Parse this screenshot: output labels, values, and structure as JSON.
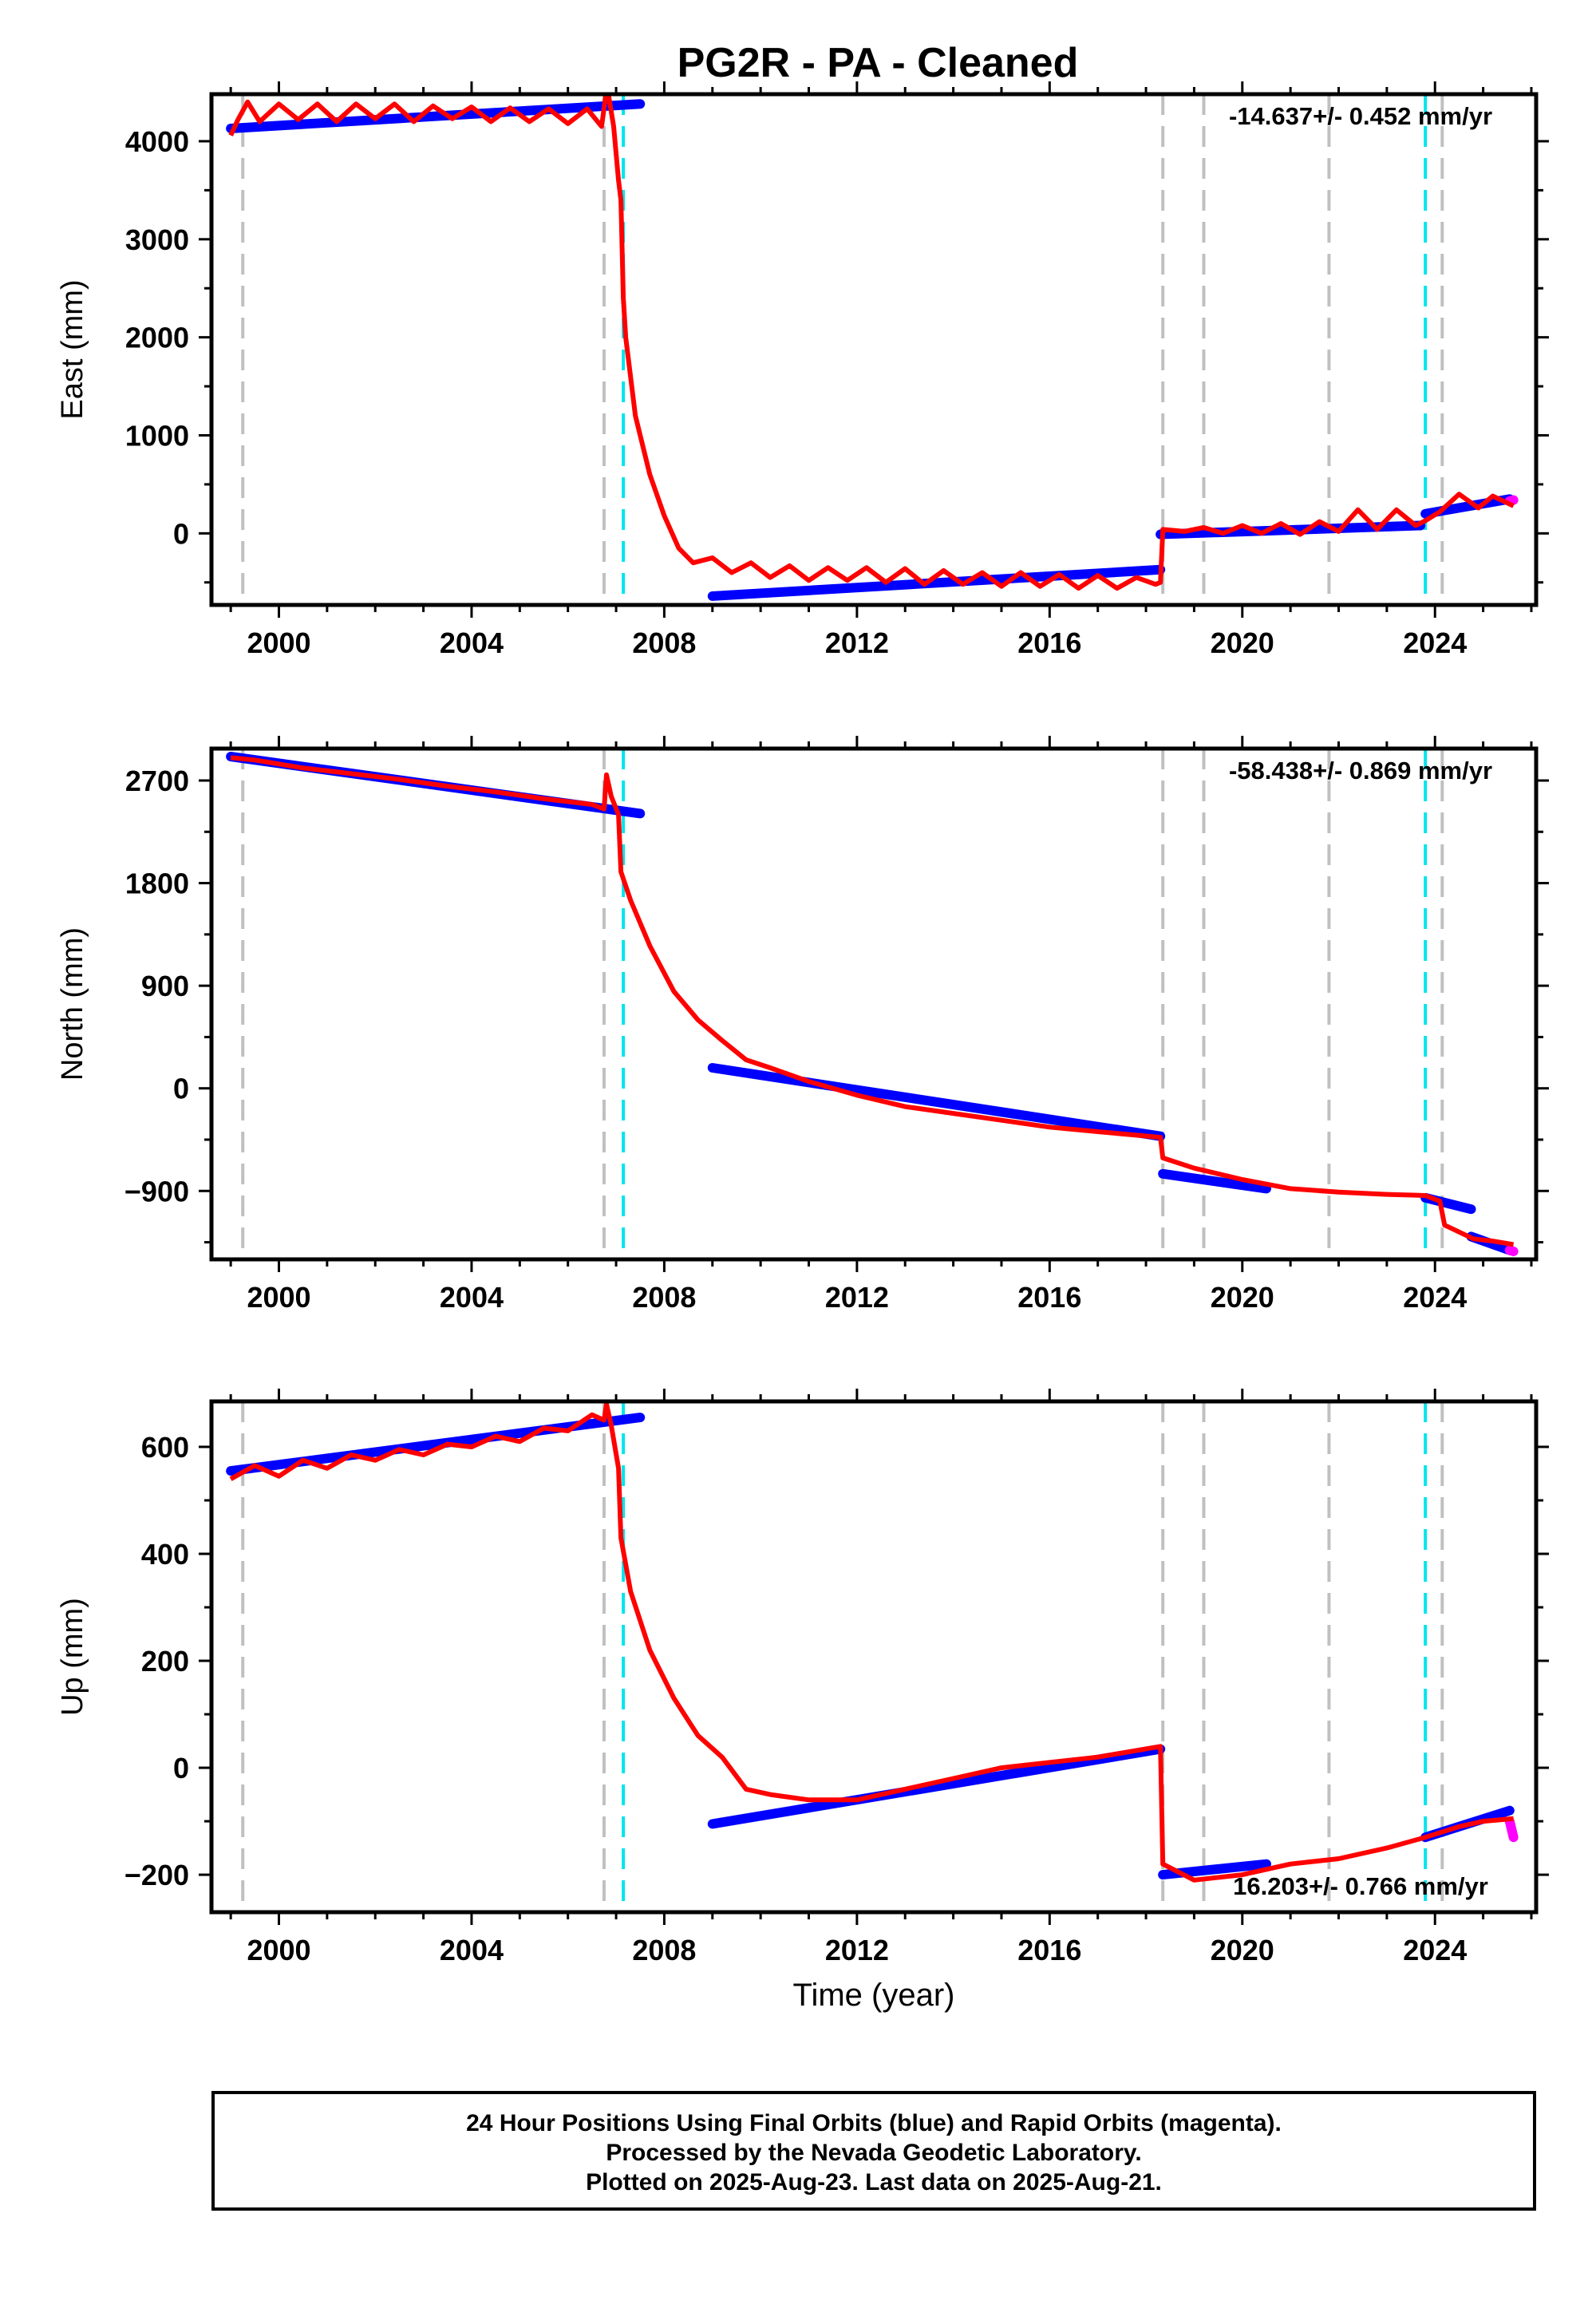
{
  "title": "PG2R  - PA - Cleaned",
  "footer": {
    "line1": "24 Hour Positions Using Final Orbits (blue) and Rapid Orbits (magenta).",
    "line2": "Processed by the Nevada Geodetic Laboratory.",
    "line3": "Plotted on 2025-Aug-23. Last data on 2025-Aug-21."
  },
  "colors": {
    "final_orbits": "#0000ff",
    "rapid_orbits": "#ff00ff",
    "model": "#ff0000",
    "equipment_change": "#c0c0c0",
    "earthquake": "#00e5ee"
  },
  "chart_data": [
    {
      "type": "scatter",
      "ylabel": "East (mm)",
      "xlabel": "",
      "xlim": [
        1998.6,
        2026.1
      ],
      "ylim": [
        -730,
        4480
      ],
      "xticks": [
        2000,
        2004,
        2008,
        2012,
        2016,
        2020,
        2024
      ],
      "yticks": [
        0,
        1000,
        2000,
        3000,
        4000
      ],
      "rate_label": "-14.637+/- 0.452 mm/yr",
      "grid": false,
      "series": [
        {
          "name": "Final Orbits",
          "color": "#0000ff",
          "segments": [
            {
              "x": [
                1999.0,
                2007.5
              ],
              "y": [
                4130,
                4380
              ]
            },
            {
              "x": [
                2009.0,
                2018.3
              ],
              "y": [
                -640,
                -370
              ]
            },
            {
              "x": [
                2018.3,
                2023.7
              ],
              "y": [
                -10,
                80
              ]
            },
            {
              "x": [
                2023.8,
                2025.55
              ],
              "y": [
                200,
                350
              ]
            }
          ]
        },
        {
          "name": "Rapid Orbits",
          "color": "#ff00ff",
          "segments": [
            {
              "x": [
                2025.55,
                2025.63
              ],
              "y": [
                330,
                340
              ]
            }
          ]
        },
        {
          "name": "Model",
          "color": "#ff0000",
          "x": [
            1999.0,
            1999.15,
            1999.35,
            1999.6,
            2000.0,
            2000.4,
            2000.8,
            2001.2,
            2001.6,
            2002.0,
            2002.4,
            2002.8,
            2003.2,
            2003.6,
            2004.0,
            2004.4,
            2004.8,
            2005.2,
            2005.6,
            2006.0,
            2006.4,
            2006.7,
            2006.78,
            2006.85,
            2006.95,
            2007.05,
            2007.1,
            2007.15,
            2007.2,
            2007.4,
            2007.7,
            2008.0,
            2008.3,
            2008.6,
            2009.0,
            2009.4,
            2009.8,
            2010.2,
            2010.6,
            2011.0,
            2011.4,
            2011.8,
            2012.2,
            2012.6,
            2013.0,
            2013.4,
            2013.8,
            2014.2,
            2014.6,
            2015.0,
            2015.4,
            2015.8,
            2016.2,
            2016.6,
            2017.0,
            2017.4,
            2017.8,
            2018.2,
            2018.3,
            2018.35,
            2018.8,
            2019.2,
            2019.6,
            2020.0,
            2020.4,
            2020.8,
            2021.2,
            2021.6,
            2022.0,
            2022.4,
            2022.8,
            2023.2,
            2023.6,
            2023.8,
            2024.1,
            2024.5,
            2024.9,
            2025.2,
            2025.63
          ],
          "y": [
            4060,
            4220,
            4400,
            4200,
            4380,
            4220,
            4380,
            4200,
            4380,
            4230,
            4380,
            4200,
            4360,
            4230,
            4350,
            4200,
            4340,
            4200,
            4330,
            4180,
            4330,
            4150,
            4450,
            4450,
            4150,
            3600,
            3400,
            2400,
            2000,
            1200,
            600,
            180,
            -150,
            -300,
            -250,
            -400,
            -300,
            -450,
            -330,
            -480,
            -350,
            -480,
            -350,
            -500,
            -360,
            -520,
            -380,
            -520,
            -400,
            -540,
            -400,
            -540,
            -420,
            -560,
            -430,
            -560,
            -450,
            -520,
            -500,
            40,
            20,
            60,
            0,
            80,
            0,
            100,
            -10,
            120,
            20,
            240,
            40,
            240,
            80,
            130,
            220,
            400,
            260,
            380,
            280
          ]
        }
      ]
    },
    {
      "type": "scatter",
      "ylabel": "North (mm)",
      "xlabel": "",
      "xlim": [
        1998.6,
        2026.1
      ],
      "ylim": [
        -1500,
        2980
      ],
      "xticks": [
        2000,
        2004,
        2008,
        2012,
        2016,
        2020,
        2024
      ],
      "yticks": [
        -900,
        0,
        900,
        1800,
        2700
      ],
      "rate_label": "-58.438+/- 0.869 mm/yr",
      "grid": false,
      "series": [
        {
          "name": "Final Orbits",
          "color": "#0000ff",
          "segments": [
            {
              "x": [
                1999.0,
                2007.5
              ],
              "y": [
                2910,
                2410
              ]
            },
            {
              "x": [
                2009.0,
                2018.3
              ],
              "y": [
                180,
                -420
              ]
            },
            {
              "x": [
                2018.35,
                2020.5
              ],
              "y": [
                -750,
                -880
              ]
            },
            {
              "x": [
                2023.8,
                2024.75
              ],
              "y": [
                -960,
                -1060
              ]
            },
            {
              "x": [
                2024.75,
                2025.55
              ],
              "y": [
                -1300,
                -1420
              ]
            }
          ]
        },
        {
          "name": "Rapid Orbits",
          "color": "#ff00ff",
          "segments": [
            {
              "x": [
                2025.55,
                2025.63
              ],
              "y": [
                -1420,
                -1430
              ]
            }
          ]
        },
        {
          "name": "Model",
          "color": "#ff0000",
          "x": [
            1999.0,
            1999.5,
            2000.5,
            2001.5,
            2002.5,
            2003.5,
            2004.5,
            2005.5,
            2006.5,
            2006.75,
            2006.8,
            2006.9,
            2007.05,
            2007.1,
            2007.3,
            2007.7,
            2008.2,
            2008.7,
            2009.2,
            2009.7,
            2010.2,
            2011.0,
            2012.0,
            2013.0,
            2014.0,
            2015.0,
            2016.0,
            2017.0,
            2018.3,
            2018.35,
            2019.0,
            2020.0,
            2021.0,
            2022.0,
            2023.0,
            2023.8,
            2024.1,
            2024.2,
            2024.8,
            2025.2,
            2025.63
          ],
          "y": [
            2900,
            2880,
            2810,
            2760,
            2710,
            2650,
            2600,
            2540,
            2490,
            2450,
            2750,
            2560,
            2400,
            1900,
            1650,
            1250,
            850,
            600,
            420,
            250,
            180,
            60,
            -60,
            -160,
            -220,
            -280,
            -340,
            -380,
            -430,
            -610,
            -700,
            -800,
            -880,
            -910,
            -930,
            -940,
            -990,
            -1200,
            -1320,
            -1340,
            -1370
          ]
        }
      ]
    },
    {
      "type": "scatter",
      "ylabel": "Up (mm)",
      "xlabel": "Time (year)",
      "xlim": [
        1998.6,
        2026.1
      ],
      "ylim": [
        -270,
        685
      ],
      "xticks": [
        2000,
        2004,
        2008,
        2012,
        2016,
        2020,
        2024
      ],
      "yticks": [
        -200,
        0,
        200,
        400,
        600
      ],
      "rate_label": "16.203+/- 0.766 mm/yr",
      "grid": false,
      "series": [
        {
          "name": "Final Orbits",
          "color": "#0000ff",
          "segments": [
            {
              "x": [
                1999.0,
                2007.5
              ],
              "y": [
                555,
                655
              ]
            },
            {
              "x": [
                2009.0,
                2018.3
              ],
              "y": [
                -105,
                35
              ]
            },
            {
              "x": [
                2018.35,
                2020.5
              ],
              "y": [
                -200,
                -180
              ]
            },
            {
              "x": [
                2023.8,
                2025.55
              ],
              "y": [
                -130,
                -80
              ]
            }
          ]
        },
        {
          "name": "Rapid Orbits",
          "color": "#ff00ff",
          "segments": [
            {
              "x": [
                2025.55,
                2025.63
              ],
              "y": [
                -100,
                -130
              ]
            }
          ]
        },
        {
          "name": "Model",
          "color": "#ff0000",
          "x": [
            1999.0,
            1999.5,
            2000.0,
            2000.5,
            2001.0,
            2001.5,
            2002.0,
            2002.5,
            2003.0,
            2003.5,
            2004.0,
            2004.5,
            2005.0,
            2005.5,
            2006.0,
            2006.5,
            2006.75,
            2006.8,
            2006.9,
            2007.05,
            2007.1,
            2007.3,
            2007.7,
            2008.2,
            2008.7,
            2009.2,
            2009.7,
            2010.2,
            2011.0,
            2012.0,
            2013.0,
            2014.0,
            2015.0,
            2016.0,
            2017.0,
            2018.3,
            2018.35,
            2019.0,
            2020.0,
            2021.0,
            2022.0,
            2023.0,
            2023.8,
            2024.5,
            2025.0,
            2025.63
          ],
          "y": [
            540,
            565,
            545,
            575,
            560,
            585,
            575,
            595,
            585,
            605,
            600,
            620,
            610,
            635,
            630,
            660,
            650,
            680,
            640,
            560,
            430,
            330,
            220,
            130,
            60,
            20,
            -40,
            -50,
            -60,
            -60,
            -40,
            -20,
            0,
            10,
            20,
            40,
            -180,
            -210,
            -200,
            -180,
            -170,
            -150,
            -130,
            -110,
            -100,
            -95
          ]
        }
      ]
    }
  ],
  "event_lines": {
    "equipment_change": [
      1999.25,
      2006.75,
      2018.35,
      2019.2,
      2021.8,
      2024.15
    ],
    "earthquake": [
      2007.15,
      2023.8
    ]
  }
}
